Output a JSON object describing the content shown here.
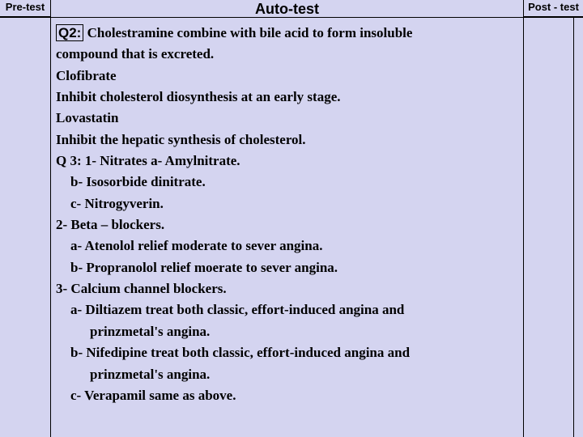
{
  "header": {
    "pretest": "Pre-test",
    "autotest": "Auto-test",
    "posttest": "Post - test"
  },
  "content": {
    "q2_label": "Q2:",
    "q2_text_a": "  Cholestramine combine with bile acid to form insoluble",
    "q2_text_b": "compound that is excreted.",
    "clofibrate": " Clofibrate",
    "clofibrate_desc": "Inhibit cholesterol diosynthesis at an early stage.",
    "lovastatin": " Lovastatin",
    "lovastatin_desc": "Inhibit the hepatic synthesis of cholesterol.",
    "q3_line": "Q 3:  1-  Nitrates            a-  Amylnitrate.",
    "q3_b": "b-  Isosorbide dinitrate.",
    "q3_c": "c-  Nitrogyverin.",
    "q3_2": " 2-  Beta – blockers.",
    "q3_2a": "a-  Atenolol relief moderate to sever angina.",
    "q3_2b": "b-  Propranolol relief moerate to sever angina.",
    "q3_3": " 3-  Calcium channel blockers.",
    "q3_3a": "a-  Diltiazem treat both classic, effort-induced angina and",
    "q3_3a2": "prinzmetal's angina.",
    "q3_3b": "b-  Nifedipine treat both classic, effort-induced angina and",
    "q3_3b2": "prinzmetal's angina.",
    "q3_3c": "c-  Verapamil same as above."
  }
}
